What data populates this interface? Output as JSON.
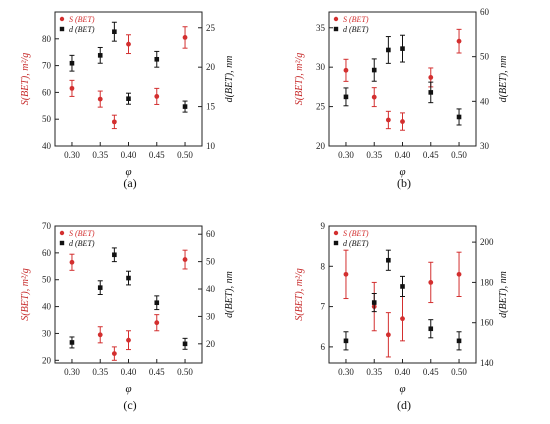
{
  "colors": {
    "s_series": "#d32f2f",
    "d_series": "#111111",
    "axis": "#222222"
  },
  "chart_data": [
    {
      "type": "scatter",
      "panel_label": "(a)",
      "xlabel": "φ",
      "ylabel_left": "S(BET), m²/g",
      "ylabel_right": "d(BET), nm",
      "xlim": [
        0.27,
        0.53
      ],
      "xticks": [
        "0.30",
        "0.35",
        "0.40",
        "0.45",
        "0.50"
      ],
      "ylim_left": [
        40,
        90
      ],
      "yticks_left": [
        40,
        50,
        60,
        70,
        80
      ],
      "ylim_right": [
        10,
        27
      ],
      "yticks_right": [
        10,
        15,
        20,
        25
      ],
      "legend_placement": "top-left",
      "series": [
        {
          "name": "S (BET)",
          "axis": "left",
          "marker": "circle",
          "x": [
            0.3,
            0.35,
            0.375,
            0.4,
            0.45,
            0.5
          ],
          "y": [
            61.5,
            57.5,
            49,
            78,
            58.5,
            80.5
          ],
          "err": [
            3,
            3,
            2.5,
            3.5,
            3,
            4
          ]
        },
        {
          "name": "d (BET)",
          "axis": "right",
          "marker": "square",
          "x": [
            0.3,
            0.35,
            0.375,
            0.4,
            0.45,
            0.5
          ],
          "y": [
            20.5,
            21.5,
            24.5,
            16,
            21,
            15
          ],
          "err": [
            1,
            1,
            1.2,
            0.7,
            1,
            0.7
          ]
        }
      ]
    },
    {
      "type": "scatter",
      "panel_label": "(b)",
      "xlabel": "φ",
      "ylabel_left": "S(BET), m²/g",
      "ylabel_right": "d(BET), nm",
      "xlim": [
        0.27,
        0.53
      ],
      "xticks": [
        "0.30",
        "0.35",
        "0.40",
        "0.45",
        "0.50"
      ],
      "ylim_left": [
        20,
        37
      ],
      "yticks_left": [
        20,
        25,
        30,
        35
      ],
      "ylim_right": [
        30,
        60
      ],
      "yticks_right": [
        30,
        40,
        50,
        60
      ],
      "legend_placement": "top-left",
      "series": [
        {
          "name": "S (BET)",
          "axis": "left",
          "marker": "circle",
          "x": [
            0.3,
            0.35,
            0.375,
            0.4,
            0.45,
            0.5
          ],
          "y": [
            29.6,
            26.2,
            23.3,
            23.1,
            28.7,
            33.3
          ],
          "err": [
            1.4,
            1.2,
            1.1,
            1.1,
            1.2,
            1.5
          ]
        },
        {
          "name": "d (BET)",
          "axis": "right",
          "marker": "square",
          "x": [
            0.3,
            0.35,
            0.375,
            0.4,
            0.45,
            0.5
          ],
          "y": [
            41,
            47,
            51.5,
            51.8,
            42,
            36.5
          ],
          "err": [
            2,
            2.5,
            3,
            3,
            2.3,
            1.8
          ]
        }
      ]
    },
    {
      "type": "scatter",
      "panel_label": "(c)",
      "xlabel": "φ",
      "ylabel_left": "S(BET), m²/g",
      "ylabel_right": "d(BET), nm",
      "xlim": [
        0.27,
        0.53
      ],
      "xticks": [
        "0.30",
        "0.35",
        "0.40",
        "0.45",
        "0.50"
      ],
      "ylim_left": [
        19,
        70
      ],
      "yticks_left": [
        20,
        30,
        40,
        50,
        60,
        70
      ],
      "ylim_right": [
        13,
        63
      ],
      "yticks_right": [
        20,
        30,
        40,
        50,
        60
      ],
      "legend_placement": "top-left",
      "series": [
        {
          "name": "S (BET)",
          "axis": "left",
          "marker": "circle",
          "x": [
            0.3,
            0.35,
            0.375,
            0.4,
            0.45,
            0.5
          ],
          "y": [
            56.5,
            29.5,
            22.5,
            27.5,
            34,
            57.5
          ],
          "err": [
            3,
            3,
            2.5,
            3.5,
            3,
            3.5
          ]
        },
        {
          "name": "d (BET)",
          "axis": "right",
          "marker": "square",
          "x": [
            0.3,
            0.35,
            0.375,
            0.4,
            0.45,
            0.5
          ],
          "y": [
            20.5,
            40.5,
            52.5,
            44,
            35,
            20
          ],
          "err": [
            2,
            2.5,
            2.5,
            2.5,
            2.5,
            2
          ]
        }
      ]
    },
    {
      "type": "scatter",
      "panel_label": "(d)",
      "xlabel": "φ",
      "ylabel_left": "S(BET), m²/g",
      "ylabel_right": "d(BET), nm",
      "xlim": [
        0.27,
        0.53
      ],
      "xticks": [
        "0.30",
        "0.35",
        "0.40",
        "0.45",
        "0.50"
      ],
      "ylim_left": [
        5.6,
        9
      ],
      "yticks_left": [
        6,
        7,
        8,
        9
      ],
      "ylim_right": [
        140,
        208
      ],
      "yticks_right": [
        140,
        160,
        180,
        200
      ],
      "legend_placement": "top-left",
      "series": [
        {
          "name": "S (BET)",
          "axis": "left",
          "marker": "circle",
          "x": [
            0.3,
            0.35,
            0.375,
            0.4,
            0.45,
            0.5
          ],
          "y": [
            7.8,
            7.0,
            6.3,
            6.7,
            7.6,
            7.8
          ],
          "err": [
            0.6,
            0.6,
            0.55,
            0.55,
            0.5,
            0.55
          ]
        },
        {
          "name": "d (BET)",
          "axis": "right",
          "marker": "square",
          "x": [
            0.3,
            0.35,
            0.375,
            0.4,
            0.45,
            0.5
          ],
          "y": [
            151,
            170,
            191,
            178,
            157,
            151
          ],
          "err": [
            4.5,
            4.5,
            5,
            5,
            4.5,
            4.5
          ]
        }
      ]
    }
  ]
}
